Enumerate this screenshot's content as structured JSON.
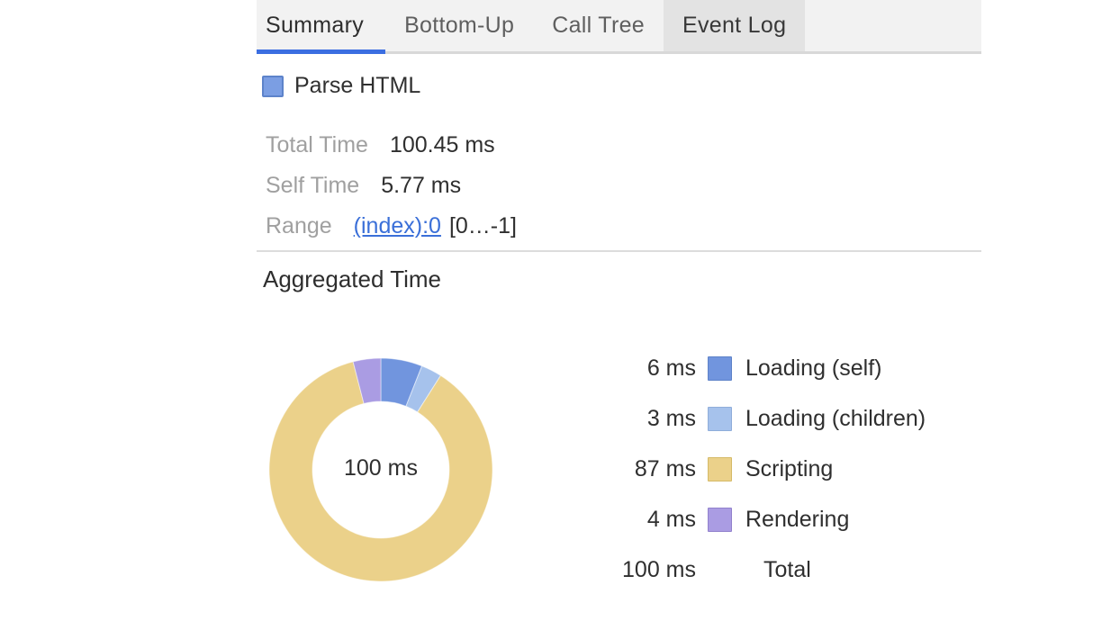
{
  "tabs": {
    "items": [
      {
        "label": "Summary",
        "selected": true
      },
      {
        "label": "Bottom-Up",
        "selected": false
      },
      {
        "label": "Call Tree",
        "selected": false
      },
      {
        "label": "Event Log",
        "selected": false,
        "hovered": true
      }
    ]
  },
  "event": {
    "title": "Parse HTML",
    "swatch_color": "#7b9ee3",
    "swatch_border": "#5d83ca"
  },
  "details": {
    "rows": [
      {
        "label": "Total Time",
        "value": "100.45 ms"
      },
      {
        "label": "Self Time",
        "value": "5.77 ms"
      },
      {
        "label": "Range",
        "link": "(index):0",
        "value": "[0…-1]"
      }
    ]
  },
  "section": {
    "title": "Aggregated Time"
  },
  "chart_data": {
    "type": "pie",
    "title": "Aggregated Time",
    "donut": true,
    "center_label": "100 ms",
    "legend_position": "right",
    "series": [
      {
        "name": "Loading (self)",
        "value_ms": 6,
        "label": "6 ms",
        "color": "#7195de",
        "border": "#5e82c8"
      },
      {
        "name": "Loading (children)",
        "value_ms": 3,
        "label": "3 ms",
        "color": "#a6c2ec",
        "border": "#8fadda"
      },
      {
        "name": "Scripting",
        "value_ms": 87,
        "label": "87 ms",
        "color": "#ebd18a",
        "border": "#d5ba67"
      },
      {
        "name": "Rendering",
        "value_ms": 4,
        "label": "4 ms",
        "color": "#aa9ce3",
        "border": "#9181cc"
      }
    ],
    "total": {
      "name": "Total",
      "label": "100 ms",
      "value_ms": 100
    }
  },
  "colors": {
    "tabbar_bg": "#f2f2f2",
    "tab_hover_bg": "#e3e3e3",
    "selected_tab_underline": "#3b6ee1",
    "link": "#3a6fd8",
    "divider": "#dcdcdc"
  }
}
